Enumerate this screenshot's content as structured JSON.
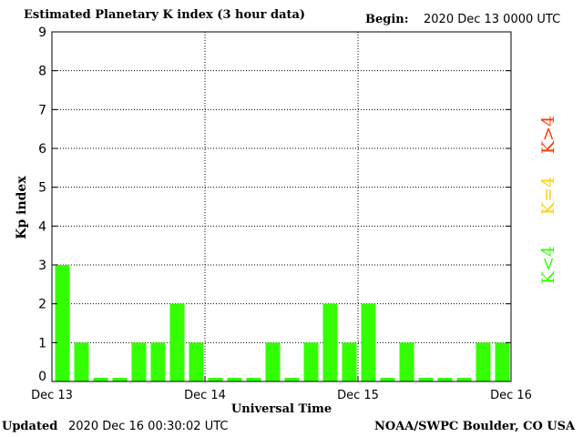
{
  "header": {
    "title": "Estimated Planetary K index (3 hour data)",
    "begin_label": "Begin:",
    "begin_value": "2020 Dec 13 0000 UTC"
  },
  "footer": {
    "updated_label": "Updated",
    "updated_value": "2020 Dec 16 00:30:02 UTC",
    "credit": "NOAA/SWPC Boulder, CO USA"
  },
  "legend": {
    "high": {
      "label": "K>4",
      "color": "#ff3a00"
    },
    "equal": {
      "label": "K=4",
      "color": "#ffd200"
    },
    "low": {
      "label": "K<4",
      "color": "#33ff00"
    }
  },
  "chart_data": {
    "type": "bar",
    "title": "Estimated Planetary K index (3 hour data)",
    "xlabel": "Universal Time",
    "ylabel": "Kp index",
    "ylim": [
      0,
      9
    ],
    "yticks": [
      0,
      1,
      2,
      3,
      4,
      5,
      6,
      7,
      8,
      9
    ],
    "x_tick_labels": [
      "Dec 13",
      "Dec 14",
      "Dec 15",
      "Dec 16"
    ],
    "interval": "3 hour",
    "grid": true,
    "bar_color": "#33ff00",
    "values": [
      3,
      1,
      0,
      0,
      1,
      1,
      2,
      1,
      0,
      0,
      0,
      1,
      0,
      1,
      2,
      1,
      2,
      0,
      1,
      0,
      0,
      0,
      1,
      1
    ]
  }
}
